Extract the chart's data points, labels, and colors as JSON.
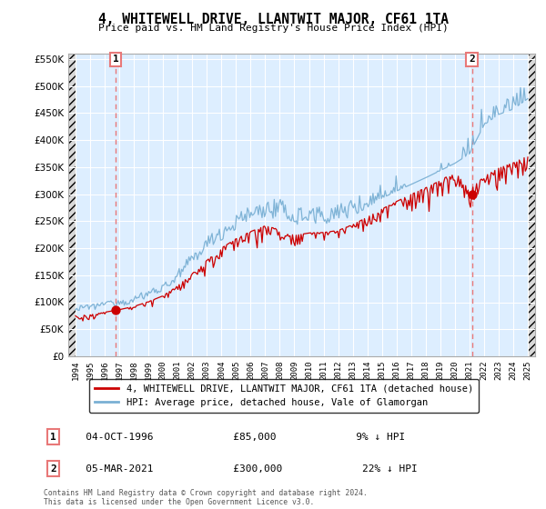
{
  "title": "4, WHITEWELL DRIVE, LLANTWIT MAJOR, CF61 1TA",
  "subtitle": "Price paid vs. HM Land Registry's House Price Index (HPI)",
  "legend_label_red": "4, WHITEWELL DRIVE, LLANTWIT MAJOR, CF61 1TA (detached house)",
  "legend_label_blue": "HPI: Average price, detached house, Vale of Glamorgan",
  "annotation1_date": "04-OCT-1996",
  "annotation1_price": "£85,000",
  "annotation1_hpi": "9% ↓ HPI",
  "annotation2_date": "05-MAR-2021",
  "annotation2_price": "£300,000",
  "annotation2_hpi": "22% ↓ HPI",
  "footer": "Contains HM Land Registry data © Crown copyright and database right 2024.\nThis data is licensed under the Open Government Licence v3.0.",
  "red_color": "#cc0000",
  "blue_color": "#7ab0d4",
  "dashed_color": "#e87878",
  "marker_color": "#cc0000",
  "background_color": "#ffffff",
  "chart_bg_color": "#ddeeff",
  "hatch_color": "#d8d8d8",
  "ylim": [
    0,
    560000
  ],
  "yticks": [
    0,
    50000,
    100000,
    150000,
    200000,
    250000,
    300000,
    350000,
    400000,
    450000,
    500000,
    550000
  ],
  "year_start": 1994,
  "year_end": 2025,
  "sale1_year": 1996.75,
  "sale1_price": 85000,
  "sale2_year": 2021.17,
  "sale2_price": 300000
}
